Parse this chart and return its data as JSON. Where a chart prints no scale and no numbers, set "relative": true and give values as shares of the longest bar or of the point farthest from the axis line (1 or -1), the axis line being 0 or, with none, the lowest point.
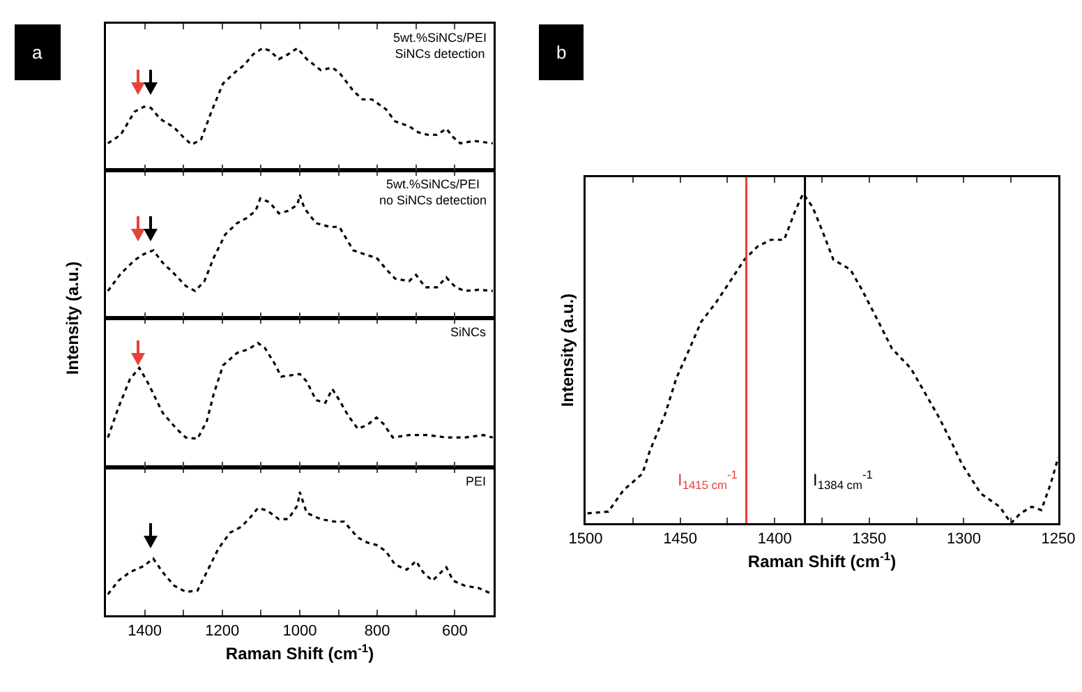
{
  "chart_data": [
    {
      "type": "line",
      "relative": true,
      "annotations": [
        "a"
      ],
      "ylabel": "Intensity (a.u.)",
      "xlim": [
        1500,
        500
      ],
      "xticks": [
        1400,
        {
          "value": 1300,
          "label": null
        },
        1200,
        {
          "value": 1100,
          "label": null
        },
        1000,
        {
          "value": 900,
          "label": null
        },
        800,
        {
          "value": 700,
          "label": null
        },
        600
      ],
      "tick_labels": false,
      "line_style": "dotted",
      "marker": "none",
      "series": [
        {
          "name": "5wt.%SiNCs/PEI\nSiNCs detection",
          "color": "#000000",
          "x": [
            1495,
            1462,
            1426,
            1402,
            1384,
            1360,
            1324,
            1300,
            1279,
            1255,
            1228,
            1198,
            1168,
            1144,
            1120,
            1096,
            1078,
            1054,
            1030,
            1006,
            982,
            946,
            916,
            898,
            862,
            838,
            814,
            778,
            754,
            718,
            694,
            670,
            646,
            622,
            604,
            586,
            550,
            526,
            502
          ],
          "values": [
            0.22,
            0.29,
            0.48,
            0.52,
            0.51,
            0.42,
            0.35,
            0.27,
            0.21,
            0.25,
            0.48,
            0.71,
            0.8,
            0.86,
            0.95,
            1,
            0.98,
            0.91,
            0.95,
            1,
            0.91,
            0.82,
            0.84,
            0.8,
            0.65,
            0.58,
            0.58,
            0.5,
            0.4,
            0.36,
            0.31,
            0.29,
            0.29,
            0.34,
            0.27,
            0.22,
            0.24,
            0.23,
            0.22
          ]
        }
      ]
    },
    {
      "type": "line",
      "relative": true,
      "xlim": [
        1500,
        500
      ],
      "xticks": [
        1400,
        {
          "value": 1300,
          "label": null
        },
        1200,
        {
          "value": 1100,
          "label": null
        },
        1000,
        {
          "value": 900,
          "label": null
        },
        800,
        {
          "value": 700,
          "label": null
        },
        600
      ],
      "tick_labels": false,
      "line_style": "dotted",
      "marker": "none",
      "series": [
        {
          "name": "5wt.%SiNCs/PEI\nno SiNCs detection",
          "color": "#000000",
          "x": [
            1495,
            1462,
            1426,
            1402,
            1378,
            1354,
            1324,
            1294,
            1270,
            1246,
            1222,
            1192,
            1162,
            1138,
            1114,
            1102,
            1078,
            1054,
            1030,
            1006,
            1000,
            988,
            958,
            922,
            898,
            862,
            826,
            802,
            778,
            754,
            718,
            700,
            676,
            646,
            622,
            598,
            574,
            538,
            502
          ],
          "values": [
            0.22,
            0.36,
            0.47,
            0.52,
            0.55,
            0.45,
            0.36,
            0.26,
            0.22,
            0.3,
            0.49,
            0.68,
            0.77,
            0.81,
            0.87,
            0.97,
            0.94,
            0.85,
            0.87,
            0.92,
            1,
            0.89,
            0.77,
            0.74,
            0.74,
            0.55,
            0.51,
            0.49,
            0.4,
            0.32,
            0.3,
            0.35,
            0.25,
            0.25,
            0.33,
            0.25,
            0.22,
            0.23,
            0.22
          ]
        }
      ]
    },
    {
      "type": "line",
      "relative": true,
      "xlim": [
        1500,
        500
      ],
      "xticks": [
        1400,
        {
          "value": 1300,
          "label": null
        },
        1200,
        {
          "value": 1100,
          "label": null
        },
        1000,
        {
          "value": 900,
          "label": null
        },
        800,
        {
          "value": 700,
          "label": null
        },
        600
      ],
      "tick_labels": false,
      "line_style": "dotted",
      "marker": "none",
      "series": [
        {
          "name": "SiNCs",
          "color": "#000000",
          "x": [
            1495,
            1468,
            1438,
            1414,
            1390,
            1354,
            1318,
            1294,
            1264,
            1240,
            1222,
            1198,
            1162,
            1132,
            1108,
            1090,
            1066,
            1048,
            1024,
            1000,
            982,
            958,
            934,
            916,
            898,
            874,
            850,
            826,
            802,
            784,
            760,
            718,
            670,
            622,
            574,
            526,
            502
          ],
          "values": [
            0.24,
            0.48,
            0.71,
            0.8,
            0.67,
            0.44,
            0.31,
            0.24,
            0.23,
            0.37,
            0.59,
            0.82,
            0.92,
            0.95,
            1,
            0.96,
            0.84,
            0.73,
            0.74,
            0.75,
            0.69,
            0.54,
            0.52,
            0.63,
            0.54,
            0.41,
            0.31,
            0.34,
            0.4,
            0.35,
            0.24,
            0.26,
            0.26,
            0.24,
            0.24,
            0.26,
            0.24
          ]
        }
      ]
    },
    {
      "type": "line",
      "relative": true,
      "xlabel": "Raman Shift (cm$^{-1}$)",
      "xlim": [
        1500,
        500
      ],
      "xticks": [
        1400,
        {
          "value": 1300,
          "label": null
        },
        1200,
        {
          "value": 1100,
          "label": null
        },
        1000,
        {
          "value": 900,
          "label": null
        },
        800,
        {
          "value": 700,
          "label": null
        },
        600
      ],
      "tick_labels": "x",
      "line_style": "dotted",
      "marker": "none",
      "series": [
        {
          "name": "PEI",
          "color": "#000000",
          "x": [
            1495,
            1468,
            1438,
            1402,
            1378,
            1354,
            1324,
            1294,
            1264,
            1240,
            1210,
            1180,
            1150,
            1126,
            1108,
            1084,
            1054,
            1030,
            1006,
            1000,
            982,
            946,
            910,
            886,
            850,
            826,
            802,
            778,
            754,
            724,
            700,
            682,
            658,
            622,
            604,
            574,
            538,
            502
          ],
          "values": [
            0.17,
            0.28,
            0.35,
            0.4,
            0.46,
            0.35,
            0.24,
            0.19,
            0.2,
            0.35,
            0.54,
            0.67,
            0.72,
            0.8,
            0.87,
            0.85,
            0.78,
            0.78,
            0.89,
            1,
            0.83,
            0.78,
            0.76,
            0.76,
            0.63,
            0.59,
            0.57,
            0.52,
            0.41,
            0.37,
            0.44,
            0.35,
            0.28,
            0.39,
            0.28,
            0.24,
            0.22,
            0.17
          ]
        }
      ]
    },
    {
      "type": "line",
      "relative": true,
      "annotations": [
        "b"
      ],
      "xlabel": "Raman Shift (cm$^{-1}$)",
      "ylabel": "Intensity (a.u.)",
      "xlim": [
        1500,
        1250
      ],
      "xticks": [
        1500,
        {
          "value": 1475,
          "label": null
        },
        1450,
        {
          "value": 1425,
          "label": null
        },
        1400,
        {
          "value": 1375,
          "label": null
        },
        1350,
        {
          "value": 1325,
          "label": null
        },
        1300,
        {
          "value": 1275,
          "label": null
        },
        1250
      ],
      "tick_labels": "x",
      "line_style": "dotted",
      "marker": "none",
      "ref_lines": [
        {
          "axis": "x",
          "value": 1415,
          "color": "#e8413a",
          "label": "I$_{1415 cm}$$^{-1}$"
        },
        {
          "axis": "x",
          "value": 1384,
          "color": "#000000",
          "label": "I$_{1384 cm}$$^{-1}$"
        }
      ],
      "series": [
        {
          "color": "#000000",
          "x": [
            1499,
            1488,
            1480,
            1470,
            1466,
            1458,
            1452,
            1445,
            1439,
            1431,
            1424,
            1416,
            1409,
            1402,
            1395,
            1389,
            1385,
            1380,
            1375,
            1369,
            1360,
            1354,
            1345,
            1338,
            1328,
            1321,
            1313,
            1306,
            1301,
            1291,
            1281,
            1275,
            1270,
            1264,
            1259,
            1254,
            1250
          ],
          "values": [
            0.03,
            0.035,
            0.1,
            0.15,
            0.22,
            0.33,
            0.44,
            0.53,
            0.61,
            0.67,
            0.73,
            0.8,
            0.84,
            0.86,
            0.86,
            0.95,
            1,
            0.96,
            0.89,
            0.8,
            0.77,
            0.71,
            0.61,
            0.53,
            0.47,
            0.4,
            0.32,
            0.24,
            0.18,
            0.09,
            0.05,
            0,
            0.03,
            0.05,
            0.04,
            0.12,
            0.2
          ]
        }
      ]
    }
  ]
}
